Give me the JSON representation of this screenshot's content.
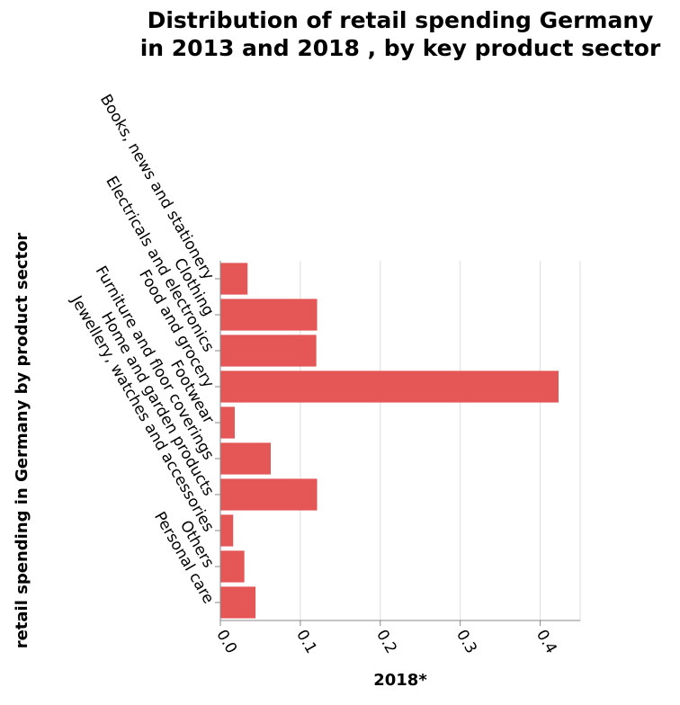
{
  "chart_data": {
    "type": "bar",
    "orientation": "horizontal",
    "title": [
      "Distribution of retail spending Germany",
      "in 2013 and 2018 , by key product sector"
    ],
    "xlabel": "2018*",
    "ylabel": "retail spending in Germany by product sector",
    "categories": [
      "Books, news and stationery",
      "Clothing",
      "Electricals and electronics",
      "Food and grocery",
      "Footwear",
      "Furniture and floor coverings",
      "Home and garden products",
      "Jewellery, watches and accessories",
      "Others",
      "Personal care"
    ],
    "values": [
      0.034,
      0.121,
      0.12,
      0.423,
      0.018,
      0.063,
      0.121,
      0.016,
      0.03,
      0.044
    ],
    "xlim": [
      0,
      0.45
    ],
    "xticks": [
      0.0,
      0.1,
      0.2,
      0.3,
      0.4
    ],
    "xtick_labels": [
      "0.0",
      "0.1",
      "0.2",
      "0.3",
      "0.4"
    ],
    "bar_color": "#e45756",
    "grid": true
  }
}
